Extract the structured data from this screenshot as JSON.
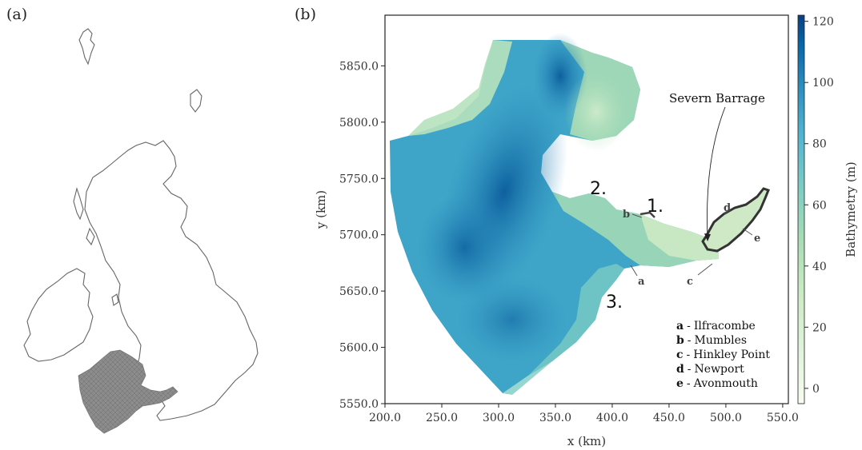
{
  "panels": {
    "a_label": "(a)",
    "b_label": "(b)"
  },
  "map": {
    "x_axis_title": "x (km)",
    "y_axis_title": "y (km)",
    "x_ticks": [
      "200.0",
      "250.0",
      "300.0",
      "350.0",
      "400.0",
      "450.0",
      "500.0",
      "550.0"
    ],
    "y_ticks": [
      "5550.0",
      "5600.0",
      "5650.0",
      "5700.0",
      "5750.0",
      "5800.0",
      "5850.0"
    ],
    "x_range_km": [
      200,
      555
    ],
    "y_range_km": [
      5550,
      5895
    ],
    "region_labels": [
      "1.",
      "2.",
      "3."
    ],
    "sites": [
      {
        "key": "a",
        "name": "Ilfracombe"
      },
      {
        "key": "b",
        "name": "Mumbles"
      },
      {
        "key": "c",
        "name": "Hinkley Point"
      },
      {
        "key": "d",
        "name": "Newport"
      },
      {
        "key": "e",
        "name": "Avonmouth"
      }
    ],
    "legend_separator": "-",
    "barrage_label": "Severn Barrage"
  },
  "colorbar": {
    "title": "Bathymetry (m)",
    "ticks": [
      "0",
      "20",
      "40",
      "60",
      "80",
      "100",
      "120"
    ],
    "range": [
      -5,
      122
    ],
    "colors": [
      "#f7fcf0",
      "#e0f3db",
      "#ccebc5",
      "#a8ddb5",
      "#7bccc4",
      "#4eb3d3",
      "#2b8cbe",
      "#0868ac",
      "#084081"
    ]
  }
}
